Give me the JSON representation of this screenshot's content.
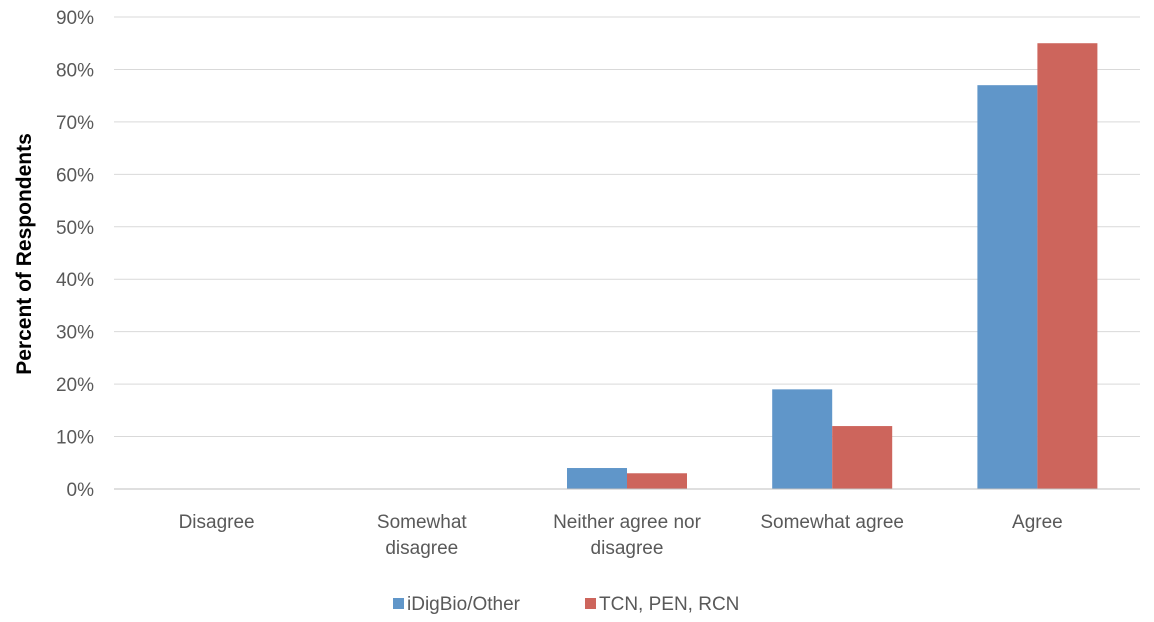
{
  "chart_data": {
    "type": "bar",
    "ylabel": "Percent of Respondents",
    "xlabel": "",
    "ylim": [
      0,
      90
    ],
    "yticks": [
      0,
      10,
      20,
      30,
      40,
      50,
      60,
      70,
      80,
      90
    ],
    "ytick_format": "{}%",
    "categories": [
      [
        "Disagree"
      ],
      [
        "Somewhat",
        "disagree"
      ],
      [
        "Neither agree nor",
        "disagree"
      ],
      [
        "Somewhat agree"
      ],
      [
        "Agree"
      ]
    ],
    "series": [
      {
        "name": "iDigBio/Other",
        "color": "#6096c9",
        "values": [
          0,
          0,
          4,
          19,
          77
        ]
      },
      {
        "name": "TCN, PEN, RCN",
        "color": "#cd655c",
        "values": [
          0,
          0,
          3,
          12,
          85
        ]
      }
    ],
    "legend_position": "bottom",
    "grid": true
  }
}
